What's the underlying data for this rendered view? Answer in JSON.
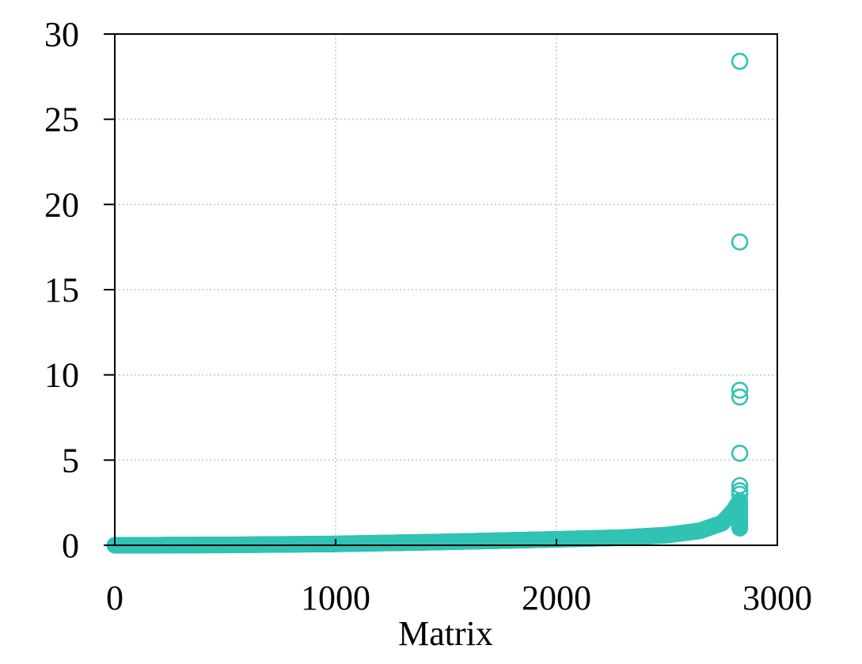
{
  "chart_data": {
    "type": "scatter",
    "title": "",
    "xlabel": "Matrix",
    "ylabel": "",
    "xlim": [
      0,
      3000
    ],
    "ylim": [
      0,
      30
    ],
    "xticks": [
      "0",
      "1000",
      "2000",
      "3000"
    ],
    "yticks": [
      "0",
      "5",
      "10",
      "15",
      "20",
      "25",
      "30"
    ],
    "grid": true,
    "legend": "none",
    "marker_color": "#31c2b3",
    "curve": {
      "description_points": [
        {
          "x": 0,
          "y": 0.0
        },
        {
          "x": 500,
          "y": 0.02
        },
        {
          "x": 1000,
          "y": 0.08
        },
        {
          "x": 1500,
          "y": 0.2
        },
        {
          "x": 2000,
          "y": 0.35
        },
        {
          "x": 2300,
          "y": 0.45
        },
        {
          "x": 2500,
          "y": 0.6
        },
        {
          "x": 2650,
          "y": 0.85
        },
        {
          "x": 2750,
          "y": 1.3
        },
        {
          "x": 2800,
          "y": 2.0
        },
        {
          "x": 2830,
          "y": 2.6
        }
      ]
    },
    "outliers": [
      {
        "x": 2830,
        "y": 28.4
      },
      {
        "x": 2830,
        "y": 17.8
      },
      {
        "x": 2830,
        "y": 9.1
      },
      {
        "x": 2830,
        "y": 8.7
      },
      {
        "x": 2830,
        "y": 5.4
      },
      {
        "x": 2830,
        "y": 3.5
      },
      {
        "x": 2830,
        "y": 3.2
      },
      {
        "x": 2830,
        "y": 3.0
      }
    ]
  }
}
